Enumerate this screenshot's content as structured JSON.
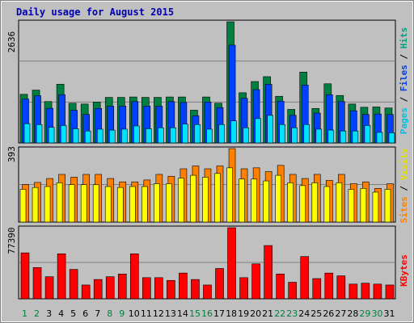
{
  "title": "Daily usage for August 2015",
  "legends": {
    "0": [
      "Pages",
      "Files",
      "Hits"
    ],
    "1": [
      "Sites",
      "Visits"
    ],
    "2": [
      "KBytes"
    ],
    "sep": " / "
  },
  "colors": {
    "hits": "#008040",
    "files": "#0040ff",
    "pages": "#00e0ff",
    "sites": "#ff8000",
    "visits": "#ffff00",
    "kbytes": "#ff0000",
    "weekday_label": "#000000",
    "weekend_label": "#008040",
    "panel_bg": "#c0c0c0",
    "grid": "#808080"
  },
  "chart_data": [
    {
      "type": "bar",
      "ymax_label": "2636",
      "ylim": [
        0,
        2636
      ],
      "categories": [
        "1",
        "2",
        "3",
        "4",
        "5",
        "6",
        "7",
        "8",
        "9",
        "10",
        "11",
        "12",
        "13",
        "14",
        "15",
        "16",
        "17",
        "18",
        "19",
        "20",
        "21",
        "22",
        "23",
        "24",
        "25",
        "26",
        "27",
        "28",
        "29",
        "30",
        "31"
      ],
      "weekend": [
        true,
        true,
        false,
        false,
        false,
        false,
        false,
        true,
        true,
        false,
        false,
        false,
        false,
        false,
        true,
        true,
        false,
        false,
        false,
        false,
        false,
        true,
        true,
        false,
        false,
        false,
        false,
        false,
        true,
        true,
        false
      ],
      "series": [
        {
          "name": "Hits",
          "values": [
            1058,
            1150,
            900,
            1278,
            864,
            846,
            890,
            991,
            991,
            1000,
            991,
            991,
            1000,
            1000,
            712,
            1000,
            864,
            2636,
            1092,
            1336,
            1442,
            1015,
            730,
            1542,
            750,
            1287,
            1033,
            846,
            776,
            783,
            760
          ]
        },
        {
          "name": "Files",
          "values": [
            954,
            1028,
            753,
            1050,
            710,
            620,
            750,
            800,
            800,
            900,
            800,
            800,
            900,
            880,
            590,
            890,
            770,
            2128,
            970,
            1160,
            1275,
            910,
            600,
            1260,
            650,
            1050,
            900,
            700,
            620,
            630,
            620
          ]
        },
        {
          "name": "Pages",
          "values": [
            420,
            400,
            340,
            380,
            310,
            260,
            300,
            280,
            300,
            370,
            310,
            330,
            330,
            410,
            400,
            300,
            400,
            480,
            330,
            530,
            600,
            400,
            330,
            400,
            300,
            280,
            260,
            260,
            380,
            230,
            220
          ]
        }
      ]
    },
    {
      "type": "bar",
      "ymax_label": "393",
      "ylim": [
        0,
        393
      ],
      "categories": [
        "1",
        "2",
        "3",
        "4",
        "5",
        "6",
        "7",
        "8",
        "9",
        "10",
        "11",
        "12",
        "13",
        "14",
        "15",
        "16",
        "17",
        "18",
        "19",
        "20",
        "21",
        "22",
        "23",
        "24",
        "25",
        "26",
        "27",
        "28",
        "29",
        "30",
        "31"
      ],
      "series": [
        {
          "name": "Sites",
          "values": [
            200,
            212,
            233,
            255,
            240,
            255,
            255,
            233,
            215,
            215,
            225,
            255,
            245,
            285,
            300,
            285,
            300,
            393,
            285,
            290,
            270,
            303,
            255,
            233,
            255,
            223,
            255,
            205,
            215,
            180,
            205
          ]
        },
        {
          "name": "Visits",
          "values": [
            175,
            185,
            190,
            210,
            200,
            200,
            200,
            190,
            185,
            190,
            190,
            205,
            205,
            235,
            250,
            240,
            260,
            290,
            230,
            230,
            220,
            250,
            210,
            195,
            210,
            190,
            210,
            175,
            180,
            160,
            175
          ]
        }
      ]
    },
    {
      "type": "bar",
      "ymax_label": "77390",
      "ylim": [
        0,
        77390
      ],
      "categories": [
        "1",
        "2",
        "3",
        "4",
        "5",
        "6",
        "7",
        "8",
        "9",
        "10",
        "11",
        "12",
        "13",
        "14",
        "15",
        "16",
        "17",
        "18",
        "19",
        "20",
        "21",
        "22",
        "23",
        "24",
        "25",
        "26",
        "27",
        "28",
        "29",
        "30",
        "31"
      ],
      "series": [
        {
          "name": "KBytes",
          "values": [
            50000,
            34000,
            24000,
            49000,
            32000,
            15000,
            21000,
            24000,
            27000,
            49000,
            23000,
            23000,
            20000,
            28000,
            21000,
            15000,
            33000,
            77390,
            23000,
            38000,
            58000,
            27000,
            18000,
            46000,
            22000,
            28000,
            25000,
            16000,
            17000,
            16000,
            15000
          ]
        }
      ]
    }
  ]
}
